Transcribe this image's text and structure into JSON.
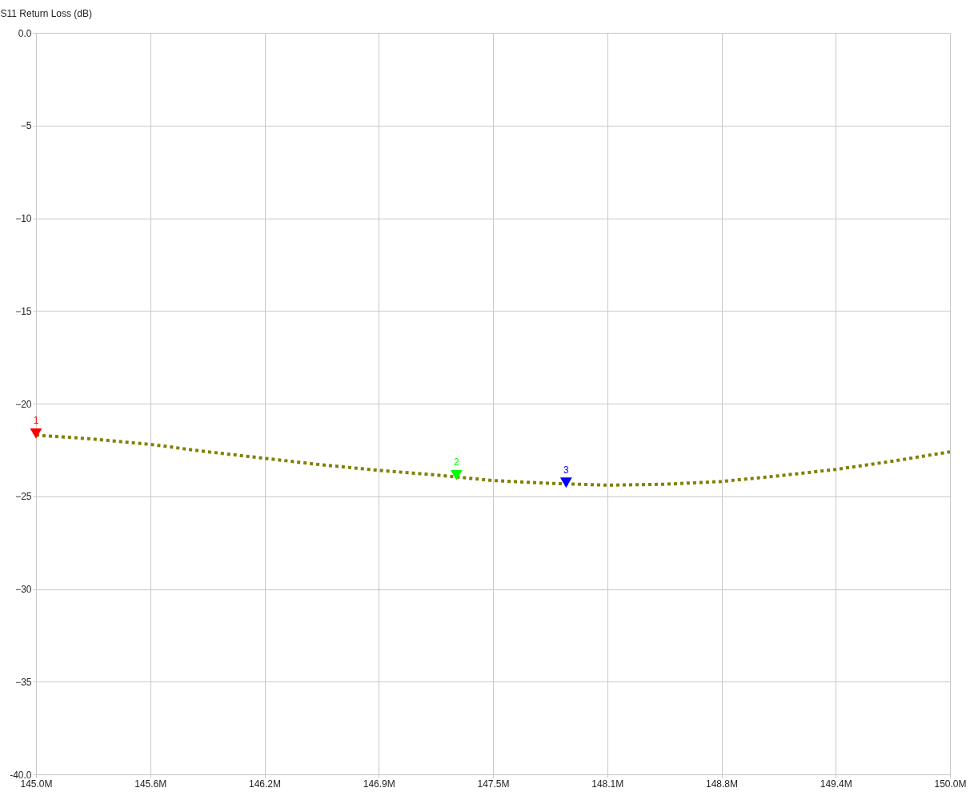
{
  "chart_data": {
    "type": "line",
    "ylabel": "S11 Return Loss (dB)",
    "xlim": [
      145,
      150
    ],
    "xticks": [
      {
        "value": 145,
        "label": "145.0M"
      },
      {
        "value": 145.625,
        "label": "145.6M"
      },
      {
        "value": 146.25,
        "label": "146.2M"
      },
      {
        "value": 146.875,
        "label": "146.9M"
      },
      {
        "value": 147.5,
        "label": "147.5M"
      },
      {
        "value": 148.125,
        "label": "148.1M"
      },
      {
        "value": 148.75,
        "label": "148.8M"
      },
      {
        "value": 149.375,
        "label": "149.4M"
      },
      {
        "value": 150,
        "label": "150.0M"
      }
    ],
    "ylim": [
      -40,
      0
    ],
    "yticks": [
      {
        "value": -40,
        "label": "-40.0"
      },
      -35,
      -30,
      -25,
      -20,
      -15,
      -10,
      -5,
      {
        "value": 0,
        "label": "0.0"
      }
    ],
    "grid": true,
    "legend": false,
    "annotations": [
      {
        "text": "1",
        "x": 145,
        "y": -21.7
      },
      {
        "text": "2",
        "x": 147.3,
        "y": -23.95
      },
      {
        "text": "3",
        "x": 147.9,
        "y": -24.35
      }
    ],
    "series": [
      {
        "type": "line",
        "color": "#808000",
        "line_style": "dotted",
        "x": [
          145,
          145.3,
          145.625,
          145.94,
          146.25,
          146.56,
          146.875,
          147.19,
          147.5,
          147.81,
          148.125,
          148.44,
          148.75,
          149.06,
          149.375,
          149.69,
          150
        ],
        "values": [
          -21.7,
          -21.9,
          -22.2,
          -22.6,
          -22.95,
          -23.3,
          -23.6,
          -23.85,
          -24.15,
          -24.3,
          -24.4,
          -24.35,
          -24.2,
          -23.9,
          -23.55,
          -23.1,
          -22.6
        ]
      },
      {
        "type": "scatter",
        "marker": "triangle",
        "colors": [
          "#ff0000",
          "#00ff00",
          "#0000ff"
        ],
        "x": [
          145,
          147.3,
          147.9
        ],
        "values": [
          -21.7,
          -23.95,
          -24.35
        ]
      }
    ]
  }
}
